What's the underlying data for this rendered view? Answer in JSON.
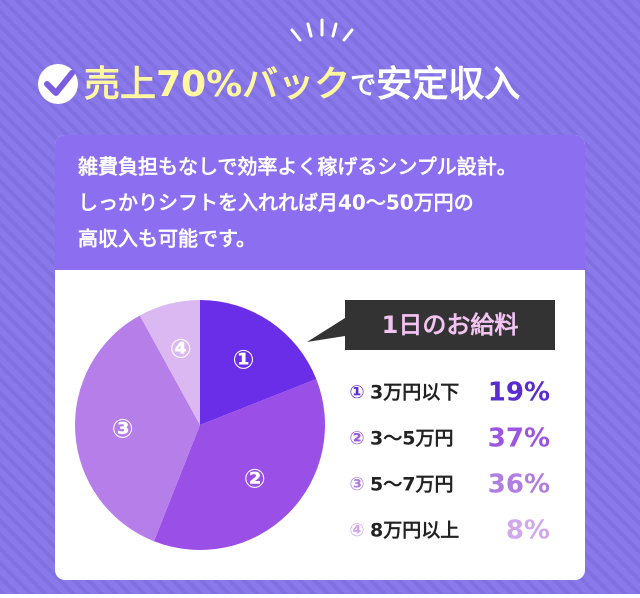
{
  "header": {
    "title_highlight": "売上70%バック",
    "title_joiner": "で",
    "title_rest": "安定収入"
  },
  "description": [
    "雑費負担もなしで効率よく稼げるシンプル設計。",
    "しっかりシフトを入れれば月40〜50万円の",
    "高収入も可能です。"
  ],
  "chart_data": {
    "type": "pie",
    "title": "1日のお給料",
    "markers": [
      "①",
      "②",
      "③",
      "④"
    ],
    "categories": [
      "3万円以下",
      "3〜5万円",
      "5〜7万円",
      "8万円以上"
    ],
    "values": [
      19,
      37,
      36,
      8
    ],
    "value_labels": [
      "19%",
      "37%",
      "36%",
      "8%"
    ],
    "colors": [
      "#6a2ee8",
      "#9a4fe6",
      "#b67ee8",
      "#dcb8f2"
    ],
    "label_colors": [
      "#5a2bd0",
      "#9b55e0",
      "#b07de0",
      "#d0a8ee"
    ]
  }
}
